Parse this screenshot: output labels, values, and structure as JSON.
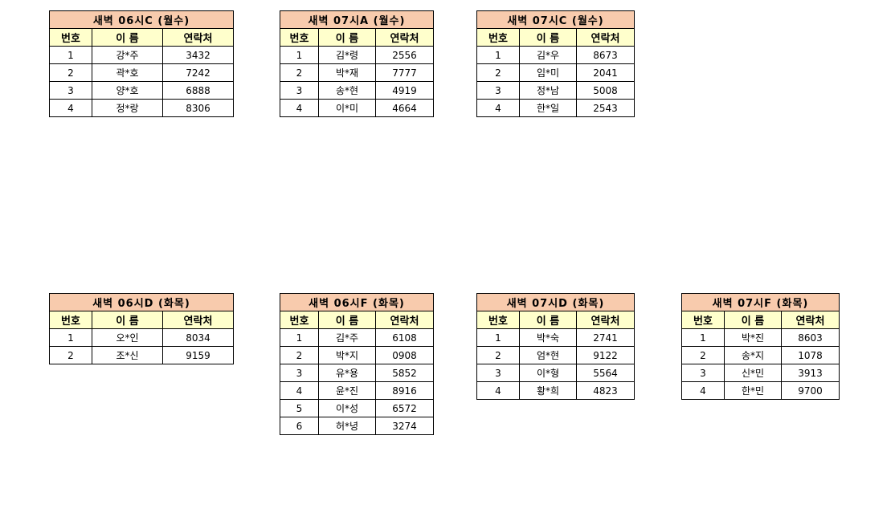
{
  "header_labels": {
    "no": "번호",
    "name": "이 름",
    "contact": "연락처"
  },
  "colors": {
    "title_bg": "#f8cbad",
    "header_bg": "#ffffcc"
  },
  "tables": [
    {
      "title": "새벽 06시C (월수)",
      "rows": [
        [
          "1",
          "강*주",
          "3432"
        ],
        [
          "2",
          "곽*호",
          "7242"
        ],
        [
          "3",
          "양*호",
          "6888"
        ],
        [
          "4",
          "정*랑",
          "8306"
        ]
      ]
    },
    {
      "title": "새벽 07시A (월수)",
      "rows": [
        [
          "1",
          "김*령",
          "2556"
        ],
        [
          "2",
          "박*재",
          "7777"
        ],
        [
          "3",
          "송*현",
          "4919"
        ],
        [
          "4",
          "이*미",
          "4664"
        ]
      ]
    },
    {
      "title": "새벽 07시C (월수)",
      "rows": [
        [
          "1",
          "김*우",
          "8673"
        ],
        [
          "2",
          "임*미",
          "2041"
        ],
        [
          "3",
          "정*남",
          "5008"
        ],
        [
          "4",
          "한*일",
          "2543"
        ]
      ]
    },
    {
      "title": "새벽 06시D (화목)",
      "rows": [
        [
          "1",
          "오*인",
          "8034"
        ],
        [
          "2",
          "조*신",
          "9159"
        ]
      ]
    },
    {
      "title": "새벽 06시F (화목)",
      "rows": [
        [
          "1",
          "김*주",
          "6108"
        ],
        [
          "2",
          "박*지",
          "0908"
        ],
        [
          "3",
          "유*용",
          "5852"
        ],
        [
          "4",
          "윤*진",
          "8916"
        ],
        [
          "5",
          "이*성",
          "6572"
        ],
        [
          "6",
          "허*녕",
          "3274"
        ]
      ]
    },
    {
      "title": "새벽 07시D (화목)",
      "rows": [
        [
          "1",
          "박*숙",
          "2741"
        ],
        [
          "2",
          "엄*현",
          "9122"
        ],
        [
          "3",
          "이*형",
          "5564"
        ],
        [
          "4",
          "황*희",
          "4823"
        ]
      ]
    },
    {
      "title": "새벽 07시F (화목)",
      "rows": [
        [
          "1",
          "박*진",
          "8603"
        ],
        [
          "2",
          "송*지",
          "1078"
        ],
        [
          "3",
          "신*민",
          "3913"
        ],
        [
          "4",
          "한*민",
          "9700"
        ]
      ]
    }
  ]
}
